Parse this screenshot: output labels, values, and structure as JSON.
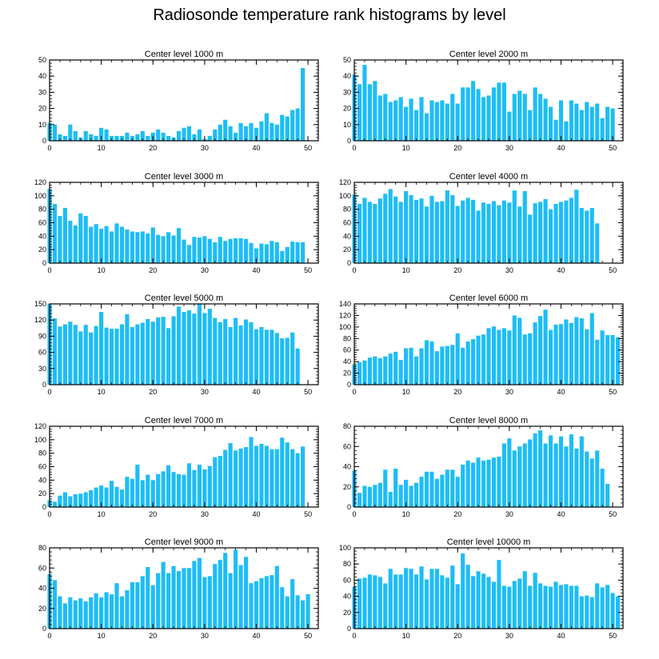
{
  "figure": {
    "title": "Radiosonde temperature rank histograms by level"
  },
  "colors": {
    "bar": "#1ebdf5",
    "axis": "#000000"
  },
  "chart_data": [
    {
      "type": "bar",
      "title": "Center level 1000 m",
      "x": [
        0,
        1,
        2,
        3,
        4,
        5,
        6,
        7,
        8,
        9,
        10,
        11,
        12,
        13,
        14,
        15,
        16,
        17,
        18,
        19,
        20,
        21,
        22,
        23,
        24,
        25,
        26,
        27,
        28,
        29,
        30,
        31,
        32,
        33,
        34,
        35,
        36,
        37,
        38,
        39,
        40,
        41,
        42,
        43,
        44,
        45,
        46,
        47,
        48,
        49,
        50,
        51
      ],
      "values": [
        11,
        10,
        4,
        3,
        10,
        6,
        2,
        6,
        4,
        3,
        8,
        7,
        3,
        3,
        3,
        5,
        3,
        4,
        6,
        3,
        5,
        7,
        5,
        3,
        2,
        6,
        8,
        9,
        4,
        7,
        1,
        3,
        7,
        10,
        13,
        9,
        5,
        11,
        9,
        11,
        8,
        12,
        17,
        11,
        10,
        16,
        15,
        19,
        20,
        45,
        0,
        0
      ],
      "xticks": [
        0,
        10,
        20,
        30,
        40,
        50
      ],
      "ylim": [
        0,
        50
      ],
      "yticks": [
        0,
        10,
        20,
        30,
        40,
        50
      ]
    },
    {
      "type": "bar",
      "title": "Center level 2000 m",
      "x": [
        0,
        1,
        2,
        3,
        4,
        5,
        6,
        7,
        8,
        9,
        10,
        11,
        12,
        13,
        14,
        15,
        16,
        17,
        18,
        19,
        20,
        21,
        22,
        23,
        24,
        25,
        26,
        27,
        28,
        29,
        30,
        31,
        32,
        33,
        34,
        35,
        36,
        37,
        38,
        39,
        40,
        41,
        42,
        43,
        44,
        45,
        46,
        47,
        48,
        49,
        50,
        51
      ],
      "values": [
        41,
        35,
        47,
        35,
        37,
        28,
        29,
        24,
        25,
        27,
        21,
        26,
        19,
        27,
        17,
        25,
        24,
        25,
        23,
        29,
        23,
        33,
        33,
        37,
        32,
        27,
        28,
        33,
        36,
        36,
        18,
        29,
        31,
        29,
        19,
        33,
        29,
        26,
        21,
        13,
        25,
        12,
        25,
        23,
        19,
        24,
        21,
        23,
        14,
        21,
        20,
        0
      ],
      "xticks": [
        0,
        10,
        20,
        30,
        40,
        50
      ],
      "ylim": [
        0,
        50
      ],
      "yticks": [
        0,
        10,
        20,
        30,
        40,
        50
      ]
    },
    {
      "type": "bar",
      "title": "Center level 3000 m",
      "x": [
        0,
        1,
        2,
        3,
        4,
        5,
        6,
        7,
        8,
        9,
        10,
        11,
        12,
        13,
        14,
        15,
        16,
        17,
        18,
        19,
        20,
        21,
        22,
        23,
        24,
        25,
        26,
        27,
        28,
        29,
        30,
        31,
        32,
        33,
        34,
        35,
        36,
        37,
        38,
        39,
        40,
        41,
        42,
        43,
        44,
        45,
        46,
        47,
        48,
        49,
        50,
        51
      ],
      "values": [
        110,
        88,
        70,
        82,
        63,
        56,
        74,
        70,
        54,
        58,
        51,
        55,
        47,
        59,
        54,
        50,
        47,
        46,
        47,
        44,
        53,
        42,
        40,
        46,
        41,
        52,
        35,
        27,
        39,
        38,
        40,
        36,
        31,
        39,
        33,
        36,
        37,
        37,
        36,
        30,
        22,
        29,
        28,
        33,
        31,
        18,
        24,
        32,
        31,
        31,
        0,
        0
      ],
      "xticks": [
        0,
        10,
        20,
        30,
        40,
        50
      ],
      "ylim": [
        0,
        120
      ],
      "yticks": [
        0,
        20,
        40,
        60,
        80,
        100,
        120
      ]
    },
    {
      "type": "bar",
      "title": "Center level 4000 m",
      "x": [
        0,
        1,
        2,
        3,
        4,
        5,
        6,
        7,
        8,
        9,
        10,
        11,
        12,
        13,
        14,
        15,
        16,
        17,
        18,
        19,
        20,
        21,
        22,
        23,
        24,
        25,
        26,
        27,
        28,
        29,
        30,
        31,
        32,
        33,
        34,
        35,
        36,
        37,
        38,
        39,
        40,
        41,
        42,
        43,
        44,
        45,
        46,
        47,
        48,
        49,
        50,
        51
      ],
      "values": [
        102,
        88,
        97,
        91,
        88,
        96,
        103,
        110,
        99,
        91,
        107,
        101,
        94,
        96,
        84,
        100,
        91,
        92,
        108,
        101,
        85,
        93,
        97,
        94,
        78,
        90,
        88,
        92,
        86,
        93,
        90,
        108,
        84,
        107,
        72,
        89,
        91,
        95,
        80,
        88,
        91,
        93,
        97,
        109,
        82,
        78,
        82,
        59,
        0,
        0,
        0,
        0
      ],
      "xticks": [
        0,
        10,
        20,
        30,
        40,
        50
      ],
      "ylim": [
        0,
        120
      ],
      "yticks": [
        0,
        20,
        40,
        60,
        80,
        100,
        120
      ]
    },
    {
      "type": "bar",
      "title": "Center level 5000 m",
      "x": [
        0,
        1,
        2,
        3,
        4,
        5,
        6,
        7,
        8,
        9,
        10,
        11,
        12,
        13,
        14,
        15,
        16,
        17,
        18,
        19,
        20,
        21,
        22,
        23,
        24,
        25,
        26,
        27,
        28,
        29,
        30,
        31,
        32,
        33,
        34,
        35,
        36,
        37,
        38,
        39,
        40,
        41,
        42,
        43,
        44,
        45,
        46,
        47,
        48,
        49,
        50,
        51
      ],
      "values": [
        151,
        123,
        108,
        112,
        117,
        111,
        99,
        111,
        97,
        109,
        135,
        106,
        104,
        104,
        112,
        131,
        107,
        112,
        115,
        122,
        117,
        125,
        126,
        105,
        127,
        145,
        135,
        138,
        132,
        152,
        133,
        141,
        124,
        116,
        122,
        107,
        124,
        110,
        121,
        116,
        103,
        107,
        102,
        102,
        96,
        86,
        87,
        97,
        67,
        0,
        0,
        0
      ],
      "xticks": [
        0,
        10,
        20,
        30,
        40,
        50
      ],
      "ylim": [
        0,
        150
      ],
      "yticks": [
        0,
        30,
        60,
        90,
        120,
        150
      ]
    },
    {
      "type": "bar",
      "title": "Center level 6000 m",
      "x": [
        0,
        1,
        2,
        3,
        4,
        5,
        6,
        7,
        8,
        9,
        10,
        11,
        12,
        13,
        14,
        15,
        16,
        17,
        18,
        19,
        20,
        21,
        22,
        23,
        24,
        25,
        26,
        27,
        28,
        29,
        30,
        31,
        32,
        33,
        34,
        35,
        36,
        37,
        38,
        39,
        40,
        41,
        42,
        43,
        44,
        45,
        46,
        47,
        48,
        49,
        50,
        51
      ],
      "values": [
        35,
        39,
        42,
        47,
        49,
        46,
        49,
        54,
        57,
        43,
        63,
        64,
        49,
        63,
        77,
        75,
        58,
        66,
        67,
        69,
        89,
        64,
        75,
        79,
        85,
        87,
        98,
        101,
        95,
        98,
        94,
        120,
        116,
        87,
        89,
        108,
        119,
        130,
        95,
        104,
        105,
        113,
        107,
        117,
        115,
        96,
        124,
        78,
        94,
        86,
        86,
        82
      ],
      "xticks": [
        0,
        10,
        20,
        30,
        40,
        50
      ],
      "ylim": [
        0,
        140
      ],
      "yticks": [
        0,
        20,
        40,
        60,
        80,
        100,
        120,
        140
      ]
    },
    {
      "type": "bar",
      "title": "Center level 7000 m",
      "x": [
        0,
        1,
        2,
        3,
        4,
        5,
        6,
        7,
        8,
        9,
        10,
        11,
        12,
        13,
        14,
        15,
        16,
        17,
        18,
        19,
        20,
        21,
        22,
        23,
        24,
        25,
        26,
        27,
        28,
        29,
        30,
        31,
        32,
        33,
        34,
        35,
        36,
        37,
        38,
        39,
        40,
        41,
        42,
        43,
        44,
        45,
        46,
        47,
        48,
        49,
        50,
        51
      ],
      "values": [
        10,
        8,
        17,
        22,
        16,
        19,
        20,
        22,
        25,
        29,
        32,
        29,
        39,
        30,
        26,
        45,
        42,
        63,
        40,
        48,
        40,
        49,
        53,
        62,
        52,
        49,
        48,
        65,
        55,
        63,
        56,
        61,
        74,
        76,
        85,
        95,
        84,
        87,
        89,
        104,
        91,
        94,
        91,
        86,
        86,
        103,
        96,
        86,
        80,
        90,
        0,
        0
      ],
      "xticks": [
        0,
        10,
        20,
        30,
        40,
        50
      ],
      "ylim": [
        0,
        120
      ],
      "yticks": [
        0,
        20,
        40,
        60,
        80,
        100,
        120
      ]
    },
    {
      "type": "bar",
      "title": "Center level 8000 m",
      "x": [
        0,
        1,
        2,
        3,
        4,
        5,
        6,
        7,
        8,
        9,
        10,
        11,
        12,
        13,
        14,
        15,
        16,
        17,
        18,
        19,
        20,
        21,
        22,
        23,
        24,
        25,
        26,
        27,
        28,
        29,
        30,
        31,
        32,
        33,
        34,
        35,
        36,
        37,
        38,
        39,
        40,
        41,
        42,
        43,
        44,
        45,
        46,
        47,
        48,
        49,
        50,
        51
      ],
      "values": [
        36,
        14,
        21,
        20,
        22,
        24,
        37,
        15,
        38,
        22,
        27,
        21,
        24,
        30,
        35,
        35,
        28,
        32,
        37,
        37,
        30,
        42,
        46,
        44,
        49,
        46,
        47,
        49,
        50,
        63,
        68,
        56,
        60,
        63,
        67,
        73,
        76,
        63,
        71,
        63,
        70,
        60,
        72,
        58,
        70,
        55,
        48,
        56,
        38,
        23,
        0,
        0
      ],
      "xticks": [
        0,
        10,
        20,
        30,
        40,
        50
      ],
      "ylim": [
        0,
        80
      ],
      "yticks": [
        0,
        20,
        40,
        60,
        80
      ]
    },
    {
      "type": "bar",
      "title": "Center level 9000 m",
      "x": [
        0,
        1,
        2,
        3,
        4,
        5,
        6,
        7,
        8,
        9,
        10,
        11,
        12,
        13,
        14,
        15,
        16,
        17,
        18,
        19,
        20,
        21,
        22,
        23,
        24,
        25,
        26,
        27,
        28,
        29,
        30,
        31,
        32,
        33,
        34,
        35,
        36,
        37,
        38,
        39,
        40,
        41,
        42,
        43,
        44,
        45,
        46,
        47,
        48,
        49,
        50,
        51
      ],
      "values": [
        54,
        48,
        32,
        25,
        31,
        28,
        30,
        27,
        31,
        35,
        31,
        36,
        34,
        45,
        32,
        38,
        46,
        46,
        52,
        61,
        43,
        55,
        66,
        55,
        62,
        57,
        60,
        60,
        67,
        70,
        51,
        52,
        64,
        68,
        75,
        55,
        78,
        63,
        71,
        45,
        47,
        50,
        52,
        53,
        62,
        41,
        32,
        49,
        33,
        28,
        34,
        0
      ],
      "xticks": [
        0,
        10,
        20,
        30,
        40,
        50
      ],
      "ylim": [
        0,
        80
      ],
      "yticks": [
        0,
        20,
        40,
        60,
        80
      ]
    },
    {
      "type": "bar",
      "title": "Center level 10000 m",
      "x": [
        0,
        1,
        2,
        3,
        4,
        5,
        6,
        7,
        8,
        9,
        10,
        11,
        12,
        13,
        14,
        15,
        16,
        17,
        18,
        19,
        20,
        21,
        22,
        23,
        24,
        25,
        26,
        27,
        28,
        29,
        30,
        31,
        32,
        33,
        34,
        35,
        36,
        37,
        38,
        39,
        40,
        41,
        42,
        43,
        44,
        45,
        46,
        47,
        48,
        49,
        50,
        51
      ],
      "values": [
        52,
        62,
        63,
        67,
        66,
        64,
        56,
        74,
        67,
        67,
        75,
        74,
        67,
        77,
        61,
        74,
        74,
        66,
        63,
        78,
        55,
        93,
        79,
        65,
        71,
        68,
        64,
        58,
        85,
        53,
        52,
        59,
        62,
        71,
        53,
        69,
        56,
        53,
        52,
        58,
        54,
        55,
        53,
        53,
        40,
        41,
        39,
        56,
        51,
        54,
        44,
        40
      ],
      "xticks": [
        0,
        10,
        20,
        30,
        40,
        50
      ],
      "ylim": [
        0,
        100
      ],
      "yticks": [
        0,
        20,
        40,
        60,
        80,
        100
      ]
    }
  ]
}
